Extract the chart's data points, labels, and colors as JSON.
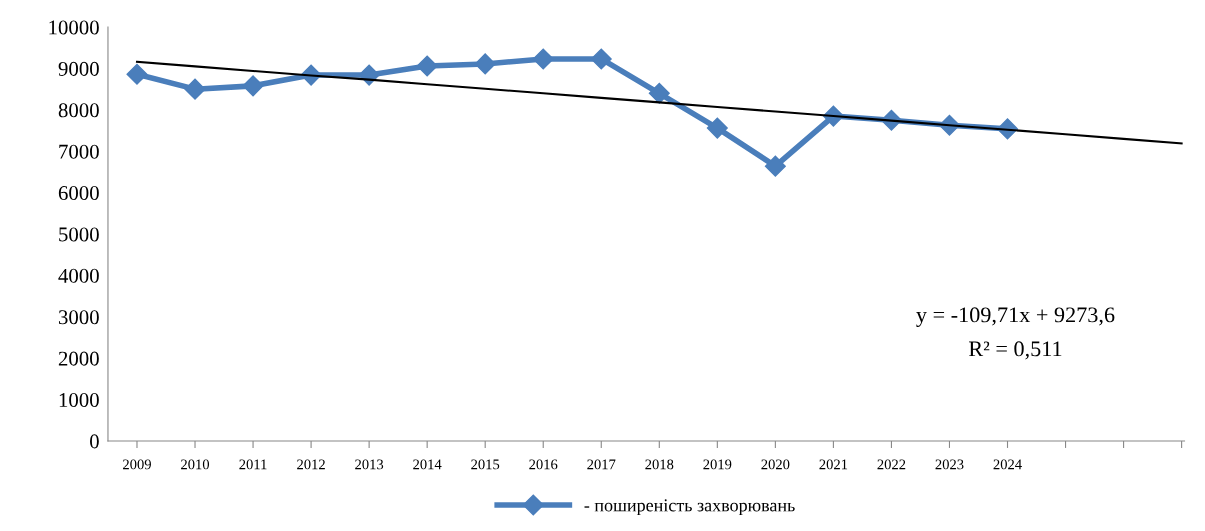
{
  "chart_data": {
    "type": "line",
    "categories": [
      "2009",
      "2010",
      "2011",
      "2012",
      "2013",
      "2014",
      "2015",
      "2016",
      "2017",
      "2018",
      "2019",
      "2020",
      "2021",
      "2022",
      "2023",
      "2024",
      null,
      null,
      null
    ],
    "series": [
      {
        "name": "- поширеність захворювань",
        "color": "#4a7ebb",
        "marker": "diamond",
        "values": [
          8860,
          8500,
          8580,
          8840,
          8840,
          9060,
          9110,
          9230,
          9230,
          8400,
          7560,
          6640,
          7850,
          7750,
          7630,
          7540,
          null,
          null,
          null
        ]
      },
      {
        "color": "#000000",
        "marker": "none",
        "values": [
          9160,
          9050,
          8940,
          8830,
          8730,
          8620,
          8510,
          8400,
          8290,
          8180,
          8070,
          7960,
          7850,
          7740,
          7630,
          7520,
          7410,
          7300,
          7190
        ]
      }
    ],
    "ylim": [
      0,
      10000
    ],
    "yticks": [
      0,
      1000,
      2000,
      3000,
      4000,
      5000,
      6000,
      7000,
      8000,
      9000,
      10000
    ],
    "annotations": [
      "y = -109,71x + 9273,6",
      "R² = 0,511"
    ],
    "grid": false,
    "legend": "bottom"
  }
}
